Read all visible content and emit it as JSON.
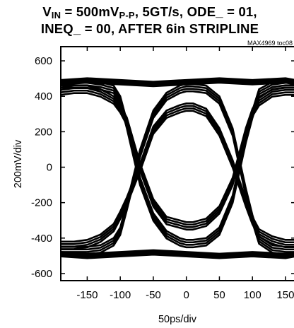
{
  "chart_data": {
    "type": "line",
    "title_line1_prefix": "V",
    "title_line1_sub": "IN",
    "title_line1_mid": " = 500mV",
    "title_line1_sub2": "P-P",
    "title_line1_rest": ", 5GT/s, ODE_ = 01,",
    "title_line2": "INEQ_ = 00, AFTER 6in STRIPLINE",
    "watermark": "MAX4969 toc08",
    "xlabel": "50ps/div",
    "ylabel": "200mV/div",
    "xlim": [
      -190,
      165
    ],
    "ylim": [
      -640,
      680
    ],
    "x_ticks": [
      -150,
      -100,
      -50,
      0,
      50,
      100,
      150
    ],
    "y_ticks": [
      600,
      400,
      200,
      0,
      -200,
      -400,
      -600
    ],
    "x_tick_labels": [
      "-150",
      "-100",
      "-50",
      "0",
      "50",
      "100",
      "150"
    ],
    "y_tick_labels": [
      "600",
      "400",
      "200",
      "0",
      "-200",
      "-400",
      "-600"
    ],
    "grid": false,
    "series": [
      {
        "x": [
          -190,
          -170,
          -150,
          -130,
          -110,
          -100,
          -90,
          -70,
          -50,
          -30,
          -10,
          0,
          10,
          30,
          50,
          70,
          90,
          100,
          110,
          130,
          150,
          165
        ],
        "values": [
          430,
          440,
          440,
          420,
          380,
          330,
          260,
          0,
          -200,
          -300,
          -320,
          -330,
          -330,
          -310,
          -240,
          -80,
          200,
          310,
          370,
          420,
          430,
          430
        ]
      },
      {
        "x": [
          -190,
          -170,
          -150,
          -130,
          -110,
          -100,
          -90,
          -70,
          -50,
          -30,
          -10,
          0,
          10,
          30,
          50,
          70,
          90,
          100,
          110,
          130,
          150,
          165
        ],
        "values": [
          -440,
          -440,
          -430,
          -400,
          -340,
          -270,
          -190,
          0,
          210,
          300,
          330,
          340,
          340,
          310,
          200,
          20,
          -200,
          -300,
          -370,
          -410,
          -430,
          -430
        ]
      },
      {
        "x": [
          -190,
          -170,
          -150,
          -130,
          -110,
          -100,
          -90,
          -70,
          -50,
          -30,
          -10,
          0,
          10,
          30,
          50,
          70,
          90,
          100,
          110,
          130,
          150,
          165
        ],
        "values": [
          470,
          470,
          470,
          460,
          440,
          380,
          240,
          -80,
          -280,
          -380,
          -420,
          -430,
          -430,
          -420,
          -360,
          -180,
          160,
          300,
          420,
          460,
          470,
          470
        ]
      },
      {
        "x": [
          -190,
          -170,
          -150,
          -130,
          -110,
          -100,
          -90,
          -70,
          -50,
          -30,
          -10,
          0,
          10,
          30,
          50,
          70,
          90,
          100,
          110,
          130,
          150,
          165
        ],
        "values": [
          -470,
          -470,
          -470,
          -460,
          -420,
          -360,
          -220,
          80,
          300,
          400,
          440,
          450,
          450,
          440,
          380,
          200,
          -140,
          -290,
          -410,
          -460,
          -470,
          -470
        ]
      },
      {
        "x": [
          -190,
          -150,
          -100,
          -50,
          0,
          50,
          100,
          150,
          165
        ],
        "values": [
          480,
          490,
          480,
          470,
          480,
          490,
          480,
          490,
          480
        ]
      },
      {
        "x": [
          -190,
          -150,
          -100,
          -50,
          0,
          50,
          100,
          150,
          165
        ],
        "values": [
          -490,
          -500,
          -490,
          -480,
          -490,
          -500,
          -490,
          -500,
          -490
        ]
      }
    ]
  }
}
